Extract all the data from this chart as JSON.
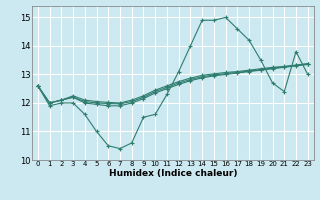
{
  "xlabel": "Humidex (Indice chaleur)",
  "bg_color": "#cce8f0",
  "grid_color": "#ffffff",
  "line_color": "#2e7d6e",
  "xlim": [
    -0.5,
    23.5
  ],
  "ylim": [
    10.0,
    15.4
  ],
  "yticks": [
    10,
    11,
    12,
    13,
    14,
    15
  ],
  "xticks": [
    0,
    1,
    2,
    3,
    4,
    5,
    6,
    7,
    8,
    9,
    10,
    11,
    12,
    13,
    14,
    15,
    16,
    17,
    18,
    19,
    20,
    21,
    22,
    23
  ],
  "series": [
    [
      12.6,
      11.9,
      12.0,
      12.0,
      11.6,
      11.0,
      10.5,
      10.4,
      10.6,
      11.5,
      11.6,
      12.3,
      13.1,
      14.0,
      14.9,
      14.9,
      15.0,
      14.6,
      14.2,
      13.5,
      12.7,
      12.4,
      13.8,
      13.0
    ],
    [
      12.6,
      12.0,
      12.1,
      12.2,
      12.0,
      11.95,
      11.9,
      11.9,
      12.0,
      12.15,
      12.35,
      12.5,
      12.65,
      12.78,
      12.88,
      12.95,
      13.0,
      13.05,
      13.1,
      13.15,
      13.2,
      13.25,
      13.3,
      13.35
    ],
    [
      12.6,
      12.0,
      12.1,
      12.2,
      12.05,
      12.0,
      11.98,
      11.97,
      12.05,
      12.2,
      12.4,
      12.55,
      12.7,
      12.82,
      12.92,
      12.98,
      13.03,
      13.07,
      13.12,
      13.17,
      13.22,
      13.27,
      13.32,
      13.37
    ],
    [
      12.6,
      12.0,
      12.1,
      12.25,
      12.1,
      12.05,
      12.02,
      12.0,
      12.1,
      12.25,
      12.45,
      12.6,
      12.75,
      12.87,
      12.97,
      13.02,
      13.07,
      13.1,
      13.15,
      13.2,
      13.25,
      13.28,
      13.33,
      13.38
    ]
  ]
}
